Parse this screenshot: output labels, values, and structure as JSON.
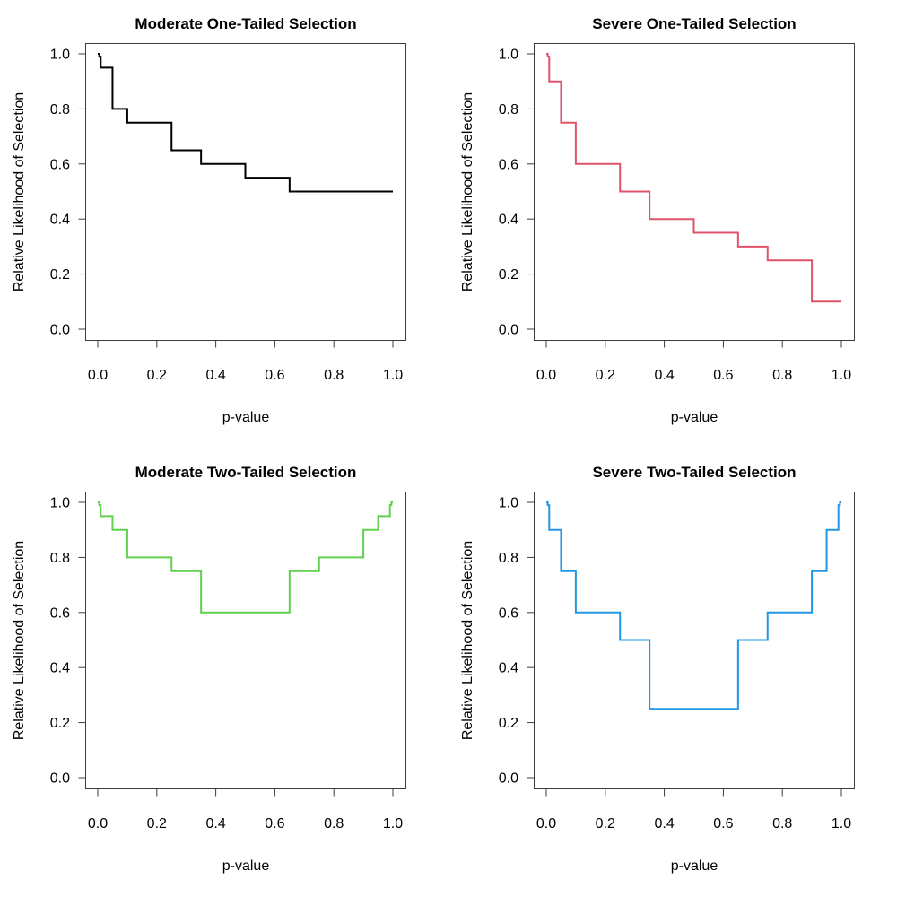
{
  "figure": {
    "background": "#ffffff",
    "box_color": "#3c3c3c",
    "tick_color": "#3c3c3c",
    "text_color": "#000000"
  },
  "axes_shared": {
    "xlabel": "p-value",
    "ylabel": "Relative Likelihood of Selection",
    "xlim": [
      0,
      1
    ],
    "ylim": [
      0,
      1
    ],
    "x_ticks": [
      0,
      0.2,
      0.4,
      0.6,
      0.8,
      1.0
    ],
    "y_ticks": [
      0,
      0.2,
      0.4,
      0.6,
      0.8,
      1.0
    ],
    "x_tick_labels": [
      "0.0",
      "0.2",
      "0.4",
      "0.6",
      "0.8",
      "1.0"
    ],
    "y_tick_labels": [
      "0.0",
      "0.2",
      "0.4",
      "0.6",
      "0.8",
      "1.0"
    ],
    "grid": "off",
    "legend": "none"
  },
  "chart_data": [
    {
      "type": "line",
      "style": "step",
      "title": "Moderate One-Tailed Selection",
      "xlabel": "p-value",
      "ylabel": "Relative Likelihood of Selection",
      "color": "#000000",
      "line_width": 2,
      "xlim": [
        0,
        1
      ],
      "ylim": [
        0,
        1
      ],
      "p_breakpoints": [
        0.005,
        0.01,
        0.05,
        0.1,
        0.25,
        0.35,
        0.5,
        0.65,
        0.75,
        0.9,
        0.95,
        0.99,
        0.995,
        1.0
      ],
      "weights": [
        1.0,
        0.99,
        0.95,
        0.8,
        0.75,
        0.65,
        0.6,
        0.55,
        0.5,
        0.5,
        0.5,
        0.5,
        0.5,
        0.5
      ]
    },
    {
      "type": "line",
      "style": "step",
      "title": "Severe One-Tailed Selection",
      "xlabel": "p-value",
      "ylabel": "Relative Likelihood of Selection",
      "color": "#DF536B",
      "line_width": 2,
      "xlim": [
        0,
        1
      ],
      "ylim": [
        0,
        1
      ],
      "p_breakpoints": [
        0.005,
        0.01,
        0.05,
        0.1,
        0.25,
        0.35,
        0.5,
        0.65,
        0.75,
        0.9,
        0.95,
        0.99,
        0.995,
        1.0
      ],
      "weights": [
        1.0,
        0.99,
        0.9,
        0.75,
        0.6,
        0.5,
        0.4,
        0.35,
        0.3,
        0.25,
        0.1,
        0.1,
        0.1,
        0.1
      ]
    },
    {
      "type": "line",
      "style": "step",
      "title": "Moderate Two-Tailed Selection",
      "xlabel": "p-value",
      "ylabel": "Relative Likelihood of Selection",
      "color": "#61D04F",
      "line_width": 2,
      "xlim": [
        0,
        1
      ],
      "ylim": [
        0,
        1
      ],
      "p_breakpoints": [
        0.005,
        0.01,
        0.05,
        0.1,
        0.25,
        0.35,
        0.5,
        0.65,
        0.75,
        0.9,
        0.95,
        0.99,
        0.995,
        1.0
      ],
      "weights": [
        1.0,
        0.99,
        0.95,
        0.9,
        0.8,
        0.75,
        0.6,
        0.6,
        0.75,
        0.8,
        0.9,
        0.95,
        0.99,
        1.0
      ]
    },
    {
      "type": "line",
      "style": "step",
      "title": "Severe Two-Tailed Selection",
      "xlabel": "p-value",
      "ylabel": "Relative Likelihood of Selection",
      "color": "#2297E6",
      "line_width": 2,
      "xlim": [
        0,
        1
      ],
      "ylim": [
        0,
        1
      ],
      "p_breakpoints": [
        0.005,
        0.01,
        0.05,
        0.1,
        0.25,
        0.35,
        0.5,
        0.65,
        0.75,
        0.9,
        0.95,
        0.99,
        0.995,
        1.0
      ],
      "weights": [
        1.0,
        0.99,
        0.9,
        0.75,
        0.6,
        0.5,
        0.25,
        0.25,
        0.5,
        0.6,
        0.75,
        0.9,
        0.99,
        1.0
      ]
    }
  ]
}
